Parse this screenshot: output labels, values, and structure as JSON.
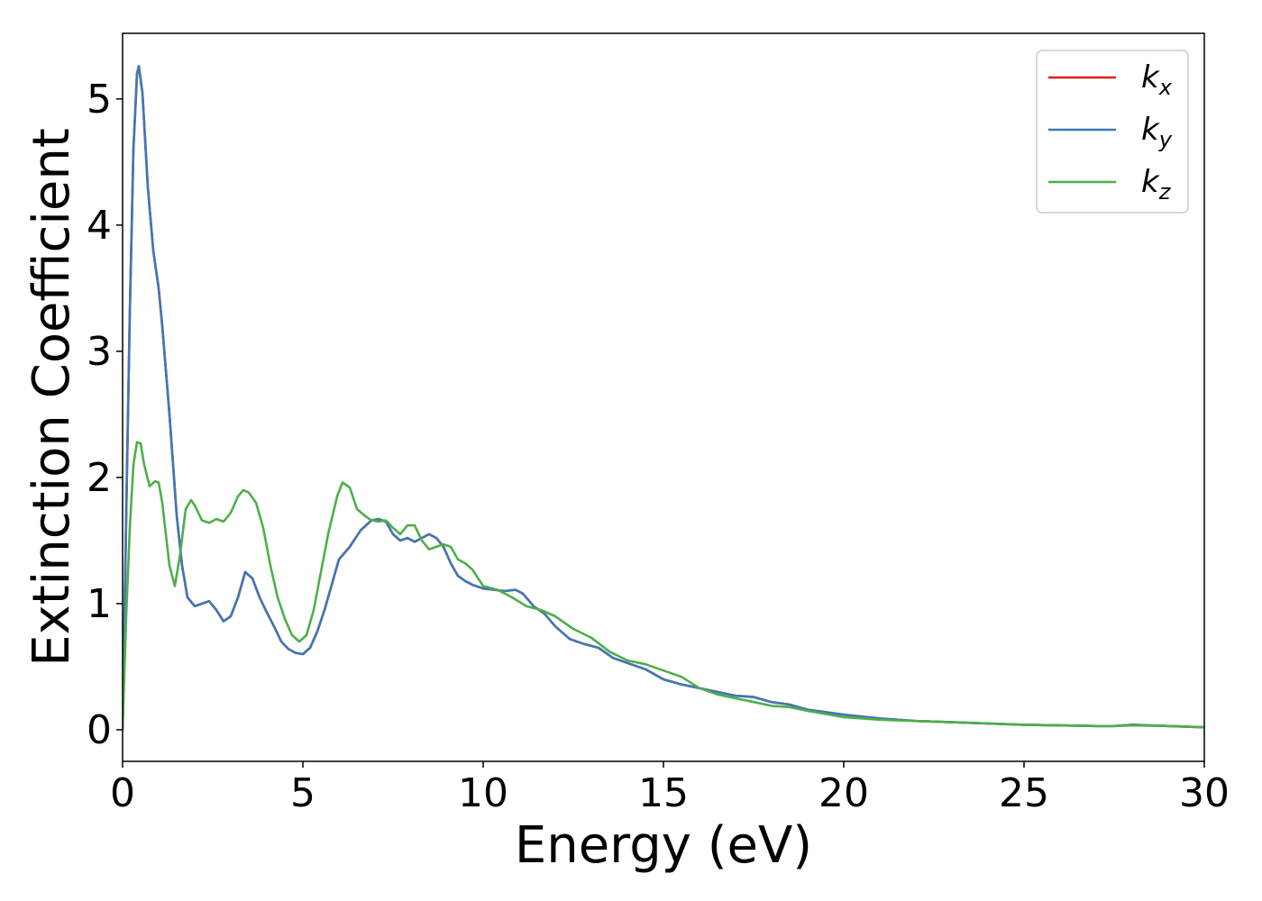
{
  "chart_data": {
    "type": "line",
    "title": "",
    "xlabel": "Energy (eV)",
    "ylabel": "Extinction Coefficient",
    "xlim": [
      0,
      30
    ],
    "ylim": [
      -0.25,
      5.52
    ],
    "xticks": [
      0,
      5,
      10,
      15,
      20,
      25,
      30
    ],
    "yticks": [
      0,
      1,
      2,
      3,
      4,
      5
    ],
    "grid": false,
    "legend_position": "top-right",
    "series": [
      {
        "name": "k",
        "subscript": "x",
        "color": "#e41a1c",
        "x": [
          0,
          0.1,
          0.2,
          0.3,
          0.4,
          0.45,
          0.55,
          0.7,
          0.85,
          1.0,
          1.1,
          1.3,
          1.5,
          1.65,
          1.8,
          2.0,
          2.2,
          2.4,
          2.6,
          2.8,
          3.0,
          3.2,
          3.4,
          3.6,
          3.8,
          4.0,
          4.2,
          4.4,
          4.6,
          4.8,
          5.0,
          5.2,
          5.4,
          5.6,
          5.8,
          6.0,
          6.3,
          6.6,
          6.9,
          7.1,
          7.3,
          7.5,
          7.7,
          7.9,
          8.1,
          8.3,
          8.5,
          8.7,
          8.9,
          9.1,
          9.3,
          9.5,
          9.7,
          10.0,
          10.3,
          10.6,
          10.9,
          11.1,
          11.4,
          11.7,
          12.0,
          12.4,
          12.8,
          13.2,
          13.6,
          14.0,
          14.5,
          15.0,
          15.5,
          16.0,
          16.5,
          17.0,
          17.5,
          18.0,
          18.5,
          19.0,
          20.0,
          21.0,
          22.0,
          23.0,
          24.0,
          25.0,
          26.0,
          27.0,
          27.5,
          28.0,
          29.0,
          30.0
        ],
        "values": [
          0.0,
          1.7,
          3.3,
          4.6,
          5.2,
          5.26,
          5.05,
          4.3,
          3.8,
          3.5,
          3.2,
          2.5,
          1.7,
          1.3,
          1.05,
          0.98,
          1.0,
          1.02,
          0.95,
          0.86,
          0.9,
          1.05,
          1.25,
          1.2,
          1.05,
          0.93,
          0.82,
          0.7,
          0.64,
          0.61,
          0.6,
          0.65,
          0.78,
          0.95,
          1.15,
          1.35,
          1.45,
          1.58,
          1.66,
          1.67,
          1.65,
          1.55,
          1.5,
          1.52,
          1.49,
          1.52,
          1.55,
          1.52,
          1.45,
          1.32,
          1.22,
          1.18,
          1.15,
          1.12,
          1.11,
          1.1,
          1.11,
          1.08,
          0.98,
          0.92,
          0.82,
          0.72,
          0.68,
          0.65,
          0.57,
          0.53,
          0.48,
          0.4,
          0.36,
          0.33,
          0.3,
          0.27,
          0.26,
          0.22,
          0.2,
          0.16,
          0.12,
          0.09,
          0.07,
          0.06,
          0.05,
          0.04,
          0.035,
          0.03,
          0.03,
          0.04,
          0.03,
          0.02
        ]
      },
      {
        "name": "k",
        "subscript": "y",
        "color": "#3f78b5",
        "x": [
          0,
          0.1,
          0.2,
          0.3,
          0.4,
          0.45,
          0.55,
          0.7,
          0.85,
          1.0,
          1.1,
          1.3,
          1.5,
          1.65,
          1.8,
          2.0,
          2.2,
          2.4,
          2.6,
          2.8,
          3.0,
          3.2,
          3.4,
          3.6,
          3.8,
          4.0,
          4.2,
          4.4,
          4.6,
          4.8,
          5.0,
          5.2,
          5.4,
          5.6,
          5.8,
          6.0,
          6.3,
          6.6,
          6.9,
          7.1,
          7.3,
          7.5,
          7.7,
          7.9,
          8.1,
          8.3,
          8.5,
          8.7,
          8.9,
          9.1,
          9.3,
          9.5,
          9.7,
          10.0,
          10.3,
          10.6,
          10.9,
          11.1,
          11.4,
          11.7,
          12.0,
          12.4,
          12.8,
          13.2,
          13.6,
          14.0,
          14.5,
          15.0,
          15.5,
          16.0,
          16.5,
          17.0,
          17.5,
          18.0,
          18.5,
          19.0,
          20.0,
          21.0,
          22.0,
          23.0,
          24.0,
          25.0,
          26.0,
          27.0,
          27.5,
          28.0,
          29.0,
          30.0
        ],
        "values": [
          0.0,
          1.7,
          3.3,
          4.6,
          5.2,
          5.26,
          5.05,
          4.3,
          3.8,
          3.5,
          3.2,
          2.5,
          1.7,
          1.3,
          1.05,
          0.98,
          1.0,
          1.02,
          0.95,
          0.86,
          0.9,
          1.05,
          1.25,
          1.2,
          1.05,
          0.93,
          0.82,
          0.7,
          0.64,
          0.61,
          0.6,
          0.65,
          0.78,
          0.95,
          1.15,
          1.35,
          1.45,
          1.58,
          1.66,
          1.67,
          1.65,
          1.55,
          1.5,
          1.52,
          1.49,
          1.52,
          1.55,
          1.52,
          1.45,
          1.32,
          1.22,
          1.18,
          1.15,
          1.12,
          1.11,
          1.1,
          1.11,
          1.08,
          0.98,
          0.92,
          0.82,
          0.72,
          0.68,
          0.65,
          0.57,
          0.53,
          0.48,
          0.4,
          0.36,
          0.33,
          0.3,
          0.27,
          0.26,
          0.22,
          0.2,
          0.16,
          0.12,
          0.09,
          0.07,
          0.06,
          0.05,
          0.04,
          0.035,
          0.03,
          0.03,
          0.04,
          0.03,
          0.02
        ]
      },
      {
        "name": "k",
        "subscript": "z",
        "color": "#4daf4a",
        "x": [
          0,
          0.1,
          0.2,
          0.3,
          0.4,
          0.5,
          0.6,
          0.75,
          0.9,
          1.0,
          1.1,
          1.3,
          1.45,
          1.6,
          1.75,
          1.9,
          2.0,
          2.2,
          2.4,
          2.6,
          2.8,
          3.0,
          3.2,
          3.35,
          3.5,
          3.7,
          3.9,
          4.1,
          4.3,
          4.5,
          4.7,
          4.9,
          5.1,
          5.3,
          5.5,
          5.7,
          5.95,
          6.1,
          6.3,
          6.5,
          6.7,
          6.9,
          7.1,
          7.3,
          7.5,
          7.7,
          7.9,
          8.1,
          8.3,
          8.5,
          8.7,
          8.9,
          9.1,
          9.3,
          9.5,
          9.7,
          10.0,
          10.4,
          10.8,
          11.2,
          11.6,
          12.0,
          12.5,
          13.0,
          13.5,
          14.0,
          14.5,
          15.0,
          15.5,
          16.0,
          16.5,
          17.0,
          17.5,
          18.0,
          18.5,
          19.0,
          20.0,
          21.0,
          22.0,
          23.0,
          24.0,
          25.0,
          26.0,
          27.0,
          27.5,
          28.0,
          29.0,
          30.0
        ],
        "values": [
          0.0,
          0.9,
          1.6,
          2.1,
          2.28,
          2.27,
          2.1,
          1.93,
          1.97,
          1.96,
          1.8,
          1.3,
          1.14,
          1.4,
          1.75,
          1.82,
          1.78,
          1.66,
          1.64,
          1.67,
          1.65,
          1.72,
          1.85,
          1.9,
          1.88,
          1.8,
          1.6,
          1.3,
          1.05,
          0.88,
          0.75,
          0.7,
          0.75,
          0.95,
          1.25,
          1.55,
          1.85,
          1.96,
          1.92,
          1.75,
          1.7,
          1.66,
          1.65,
          1.66,
          1.6,
          1.55,
          1.62,
          1.62,
          1.5,
          1.43,
          1.45,
          1.47,
          1.45,
          1.35,
          1.32,
          1.27,
          1.14,
          1.11,
          1.05,
          0.98,
          0.95,
          0.9,
          0.8,
          0.73,
          0.62,
          0.55,
          0.52,
          0.47,
          0.42,
          0.33,
          0.28,
          0.25,
          0.22,
          0.19,
          0.18,
          0.15,
          0.1,
          0.08,
          0.07,
          0.06,
          0.05,
          0.04,
          0.035,
          0.03,
          0.03,
          0.035,
          0.03,
          0.02
        ]
      }
    ]
  }
}
